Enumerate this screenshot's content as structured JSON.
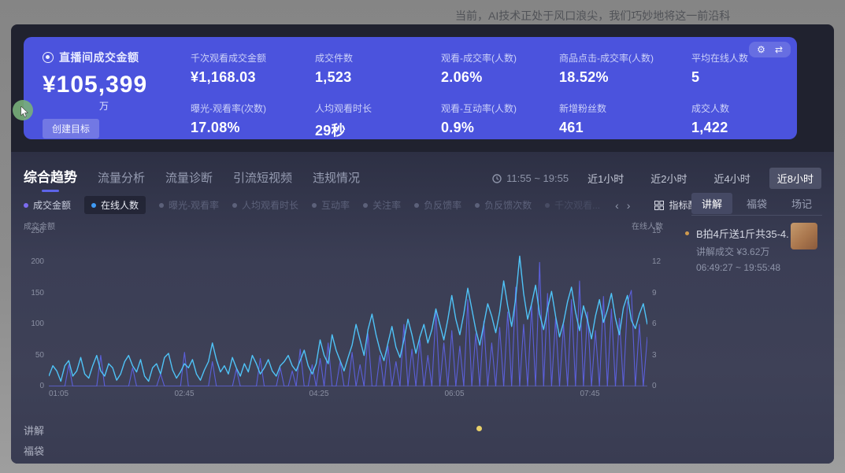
{
  "top_caption": "当前，AI技术正处于风口浪尖，我们巧妙地将这一前沿科",
  "banner": {
    "title": "直播间成交金额",
    "main_value": "¥105,399",
    "main_unit": "万",
    "create_goal_label": "创建目标",
    "gear_icon": "⚙",
    "swap_icon": "⇄",
    "metrics": [
      {
        "label": "千次观看成交金额",
        "value": "¥1,168.03"
      },
      {
        "label": "成交件数",
        "value": "1,523"
      },
      {
        "label": "观看-成交率(人数)",
        "value": "2.06%"
      },
      {
        "label": "商品点击-成交率(人数)",
        "value": "18.52%"
      },
      {
        "label": "平均在线人数",
        "value": "5"
      },
      {
        "label": "曝光-观看率(次数)",
        "value": "17.08%"
      },
      {
        "label": "人均观看时长",
        "value": "29秒"
      },
      {
        "label": "观看-互动率(人数)",
        "value": "0.9%"
      },
      {
        "label": "新增粉丝数",
        "value": "461"
      },
      {
        "label": "成交人数",
        "value": "1,422"
      }
    ]
  },
  "tabs": [
    {
      "label": "综合趋势",
      "active": true
    },
    {
      "label": "流量分析",
      "active": false
    },
    {
      "label": "流量诊断",
      "active": false
    },
    {
      "label": "引流短视频",
      "active": false
    },
    {
      "label": "违规情况",
      "active": false
    }
  ],
  "time_filter": {
    "range": "11:55 ~ 19:55",
    "options": [
      {
        "label": "近1小时",
        "active": false
      },
      {
        "label": "近2小时",
        "active": false
      },
      {
        "label": "近4小时",
        "active": false
      },
      {
        "label": "近8小时",
        "active": true
      }
    ]
  },
  "legend": {
    "items": [
      {
        "label": "成交金额",
        "color": "#7c6cf0",
        "state": "on"
      },
      {
        "label": "在线人数",
        "color": "#3f9bf5",
        "state": "selected"
      },
      {
        "label": "曝光-观看率",
        "color": "#5c617a",
        "state": "off"
      },
      {
        "label": "人均观看时长",
        "color": "#5c617a",
        "state": "off"
      },
      {
        "label": "互动率",
        "color": "#5c617a",
        "state": "off"
      },
      {
        "label": "关注率",
        "color": "#5c617a",
        "state": "off"
      },
      {
        "label": "负反馈率",
        "color": "#5c617a",
        "state": "off"
      },
      {
        "label": "负反馈次数",
        "color": "#5c617a",
        "state": "off"
      },
      {
        "label": "千次观看...",
        "color": "#4d526a",
        "state": "faded"
      }
    ],
    "prev_arrow": "‹",
    "next_arrow": "›",
    "config_label": "指标配置"
  },
  "side_panel": {
    "tabs": [
      {
        "label": "讲解",
        "active": true
      },
      {
        "label": "福袋",
        "active": false
      },
      {
        "label": "场记",
        "active": false
      }
    ],
    "item": {
      "title": "B拍4斤送1斤共35-4...",
      "deal_text": "讲解成交 ¥3.62万",
      "time_range": "06:49:27 ~ 19:55:48"
    }
  },
  "tracks": {
    "rows": [
      "讲解",
      "福袋"
    ],
    "marker_position_pct": 71.5
  },
  "colors": {
    "banner_blue": "#4b53dd",
    "accent_purple": "#5d64e8",
    "series_gmv": "#5b5fd9",
    "series_online": "#4fc3f7",
    "marker_yellow": "#e8d06a",
    "bullet_orange": "#cf9a4e",
    "panel_dark": "#20222f",
    "section_navy": "#3b3e55"
  },
  "chart_data": {
    "type": "line",
    "x_ticks": [
      "01:05",
      "02:45",
      "04:25",
      "06:05",
      "07:45"
    ],
    "left_axis": {
      "label": "成交金额",
      "ticks": [
        250,
        200,
        150,
        100,
        50,
        0
      ],
      "range": [
        0,
        250
      ]
    },
    "right_axis": {
      "label": "在线人数",
      "ticks": [
        15,
        12,
        9,
        6,
        3,
        0
      ],
      "range": [
        0,
        15
      ]
    },
    "grid": false,
    "legend_position": "top-left",
    "series": [
      {
        "name": "成交金额",
        "axis": "left",
        "color": "#5b5fd9",
        "values": [
          0,
          0,
          0,
          0,
          0,
          35,
          0,
          0,
          0,
          0,
          0,
          0,
          0,
          50,
          0,
          0,
          0,
          0,
          0,
          0,
          0,
          30,
          0,
          0,
          0,
          0,
          0,
          0,
          20,
          0,
          0,
          0,
          0,
          0,
          55,
          0,
          0,
          0,
          0,
          0,
          0,
          40,
          0,
          0,
          0,
          0,
          0,
          28,
          0,
          0,
          0,
          0,
          0,
          45,
          0,
          0,
          0,
          0,
          30,
          0,
          0,
          25,
          0,
          60,
          0,
          0,
          35,
          0,
          45,
          0,
          70,
          0,
          0,
          40,
          0,
          0,
          55,
          0,
          35,
          0,
          85,
          0,
          0,
          50,
          0,
          65,
          0,
          40,
          0,
          100,
          0,
          60,
          0,
          75,
          0,
          50,
          0,
          120,
          0,
          70,
          0,
          90,
          0,
          65,
          0,
          140,
          0,
          85,
          0,
          105,
          0,
          70,
          0,
          95,
          0,
          120,
          0,
          160,
          0,
          100,
          0,
          130,
          0,
          200,
          0,
          150,
          0,
          110,
          0,
          100,
          0,
          140,
          0,
          170,
          0,
          120,
          0,
          90,
          0,
          145,
          0,
          125,
          0,
          110,
          0,
          135,
          155,
          0,
          100,
          0,
          80
        ]
      },
      {
        "name": "在线人数",
        "axis": "right",
        "color": "#4fc3f7",
        "values": [
          1,
          2,
          1.5,
          0.5,
          2,
          2.5,
          1,
          1.5,
          2.8,
          1.2,
          0.8,
          2,
          3,
          1.5,
          1,
          2.2,
          1.8,
          0.6,
          1.2,
          2.4,
          3,
          2,
          1.4,
          2.6,
          1,
          0.5,
          1.8,
          2.2,
          1.2,
          2.8,
          3.2,
          1.6,
          0.8,
          1.4,
          2.2,
          1.8,
          2.6,
          1.2,
          0.6,
          1.6,
          2.4,
          4.2,
          2.6,
          1.4,
          2,
          1.2,
          2.8,
          1.8,
          1,
          2.2,
          1.4,
          3,
          2.2,
          1.2,
          1.8,
          2.6,
          1.5,
          1,
          2,
          2.4,
          3,
          2,
          1.5,
          2.5,
          3.5,
          2,
          1.2,
          2.2,
          4.5,
          3,
          2.2,
          5,
          3.5,
          2.5,
          1.5,
          2.8,
          4,
          6,
          4.5,
          3,
          5.5,
          7,
          5,
          3.5,
          2.5,
          4.2,
          5.8,
          3.8,
          2.8,
          4.5,
          6.5,
          5,
          3.2,
          4.8,
          6,
          4.2,
          5.5,
          7.5,
          6,
          4.5,
          6.5,
          8.8,
          6.5,
          5,
          7,
          9.5,
          7.5,
          5.5,
          4,
          6,
          8,
          6.8,
          5.2,
          7.2,
          10.2,
          7.8,
          5.8,
          8.5,
          12.6,
          9,
          6.5,
          8,
          9.8,
          7,
          5.5,
          7.5,
          9.2,
          6.8,
          4.8,
          6.2,
          8.2,
          9.6,
          7.2,
          5.4,
          7.8,
          6.4,
          4.6,
          6.8,
          8.4,
          6.2,
          7.4,
          9,
          6.6,
          5,
          7.6,
          8.8,
          6.4,
          5.6,
          7,
          8,
          6
        ]
      }
    ]
  }
}
